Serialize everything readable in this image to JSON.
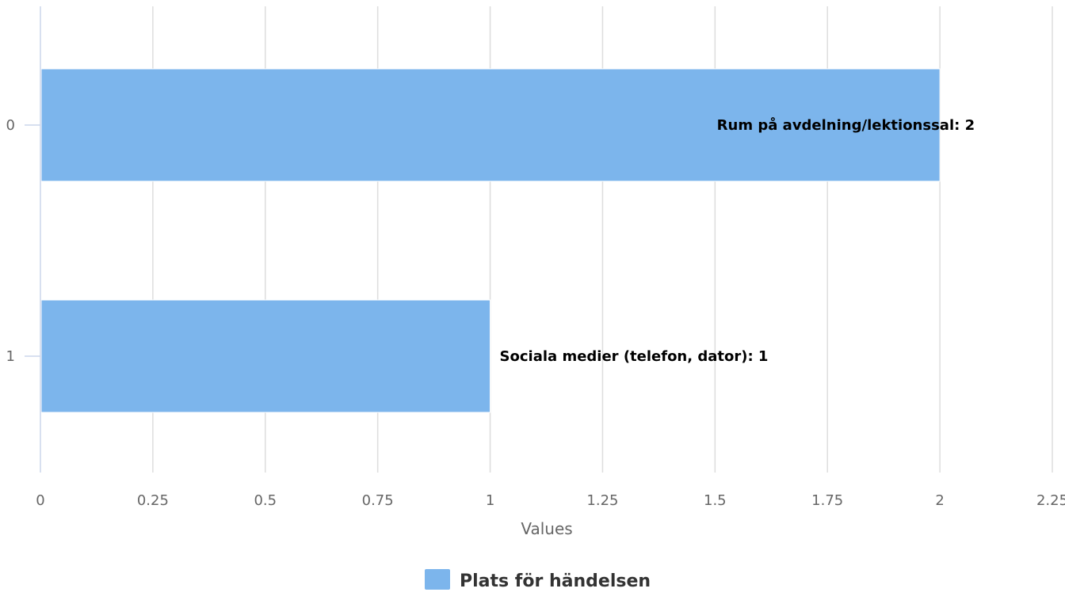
{
  "chart_data": {
    "type": "bar",
    "orientation": "horizontal",
    "categories": [
      "0",
      "1"
    ],
    "series": [
      {
        "name": "Plats för händelsen",
        "values": [
          2,
          1
        ],
        "data_labels": [
          "Rum på avdelning/lektionssal: 2",
          "Sociala medier (telefon, dator): 1"
        ],
        "color": "#7cb5ec"
      }
    ],
    "xlabel": "Values",
    "ylabel": "",
    "xlim": [
      0,
      2.25
    ],
    "x_ticks": [
      "0",
      "0.25",
      "0.5",
      "0.75",
      "1",
      "1.25",
      "1.5",
      "1.75",
      "2",
      "2.25"
    ],
    "grid": true,
    "legend": "bottom-center"
  }
}
